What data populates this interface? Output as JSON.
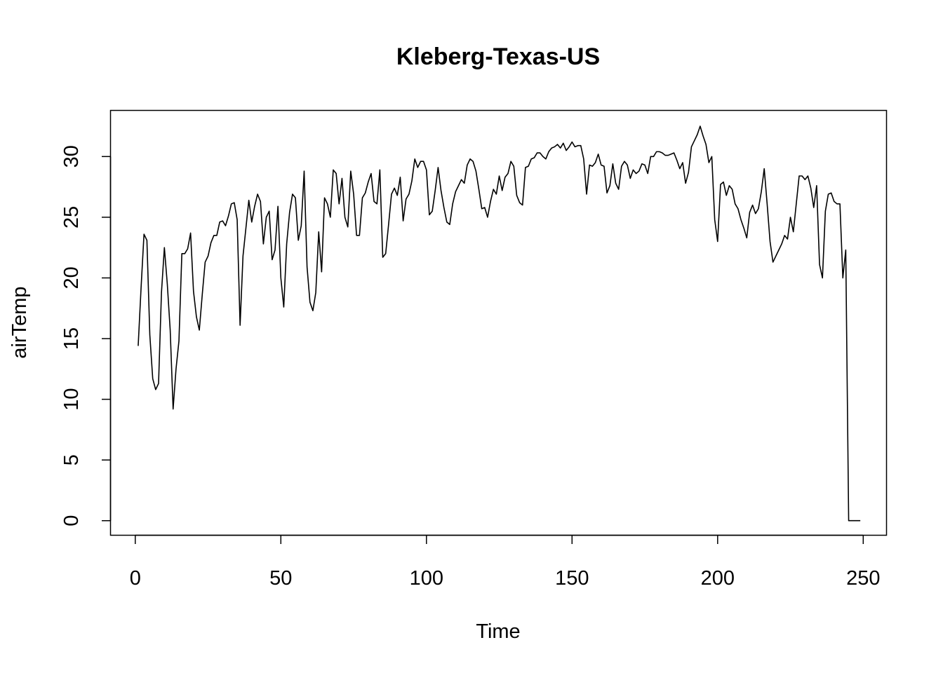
{
  "chart_data": {
    "type": "line",
    "title": "Kleberg-Texas-US",
    "xlabel": "Time",
    "ylabel": "airTemp",
    "xlim": [
      -8.5,
      258
    ],
    "ylim": [
      -1.2,
      33.8
    ],
    "xticks": [
      "0",
      "50",
      "100",
      "150",
      "200",
      "250"
    ],
    "yticks": [
      "0",
      "5",
      "10",
      "15",
      "20",
      "25",
      "30"
    ],
    "grid": false,
    "line_color": "#000000",
    "series": [
      {
        "values": [
          14.4,
          19.2,
          23.6,
          23.1,
          15.3,
          11.7,
          10.8,
          11.3,
          18.8,
          22.5,
          19.5,
          15.7,
          9.2,
          12.5,
          14.8,
          22.0,
          22.0,
          22.4,
          23.7,
          18.9,
          16.8,
          15.7,
          18.6,
          21.3,
          21.8,
          22.9,
          23.5,
          23.5,
          24.6,
          24.7,
          24.3,
          25.1,
          26.1,
          26.2,
          24.8,
          16.1,
          21.8,
          24.1,
          26.4,
          24.6,
          25.9,
          26.9,
          26.3,
          22.8,
          25.0,
          25.5,
          21.5,
          22.3,
          25.9,
          20.0,
          17.6,
          22.8,
          25.4,
          26.9,
          26.6,
          23.1,
          24.3,
          28.8,
          20.9,
          18.0,
          17.3,
          18.8,
          23.8,
          20.5,
          26.6,
          26.1,
          25.0,
          28.9,
          28.6,
          26.1,
          28.2,
          25.0,
          24.2,
          28.8,
          26.9,
          23.5,
          23.5,
          26.6,
          27.0,
          27.9,
          28.6,
          26.3,
          26.1,
          28.9,
          21.7,
          22.0,
          24.4,
          26.9,
          27.4,
          26.8,
          28.3,
          24.7,
          26.5,
          26.9,
          28.0,
          29.8,
          29.1,
          29.6,
          29.6,
          28.9,
          25.2,
          25.5,
          27.2,
          29.1,
          27.2,
          25.8,
          24.6,
          24.4,
          26.1,
          27.1,
          27.6,
          28.1,
          27.8,
          29.3,
          29.8,
          29.6,
          28.8,
          27.3,
          25.7,
          25.8,
          25.0,
          26.3,
          27.3,
          26.9,
          28.4,
          27.2,
          28.3,
          28.6,
          29.6,
          29.2,
          26.8,
          26.2,
          26.0,
          29.1,
          29.2,
          29.8,
          29.9,
          30.3,
          30.3,
          30.0,
          29.8,
          30.4,
          30.7,
          30.8,
          31.0,
          30.7,
          31.1,
          30.5,
          30.8,
          31.2,
          30.8,
          30.9,
          30.9,
          29.8,
          26.9,
          29.3,
          29.2,
          29.5,
          30.2,
          29.3,
          29.2,
          27.0,
          27.6,
          29.4,
          27.8,
          27.3,
          29.2,
          29.6,
          29.3,
          28.2,
          28.9,
          28.6,
          28.8,
          29.4,
          29.3,
          28.6,
          30.0,
          30.0,
          30.4,
          30.4,
          30.3,
          30.1,
          30.1,
          30.2,
          30.3,
          29.7,
          29.0,
          29.5,
          27.8,
          28.7,
          30.8,
          31.3,
          31.8,
          32.5,
          31.7,
          31.0,
          29.5,
          30.0,
          24.8,
          23.0,
          27.7,
          27.9,
          26.8,
          27.6,
          27.3,
          26.1,
          25.7,
          24.8,
          24.1,
          23.3,
          25.4,
          26.0,
          25.3,
          25.7,
          27.1,
          29.0,
          26.1,
          23.0,
          21.3,
          21.8,
          22.3,
          22.8,
          23.5,
          23.2,
          25.0,
          23.8,
          26.1,
          28.4,
          28.4,
          28.1,
          28.4,
          27.4,
          25.8,
          27.6,
          21.1,
          20.0,
          25.5,
          26.9,
          27.0,
          26.3,
          26.1,
          26.1,
          20.0,
          22.3,
          0,
          0,
          0,
          0,
          0
        ]
      }
    ]
  }
}
